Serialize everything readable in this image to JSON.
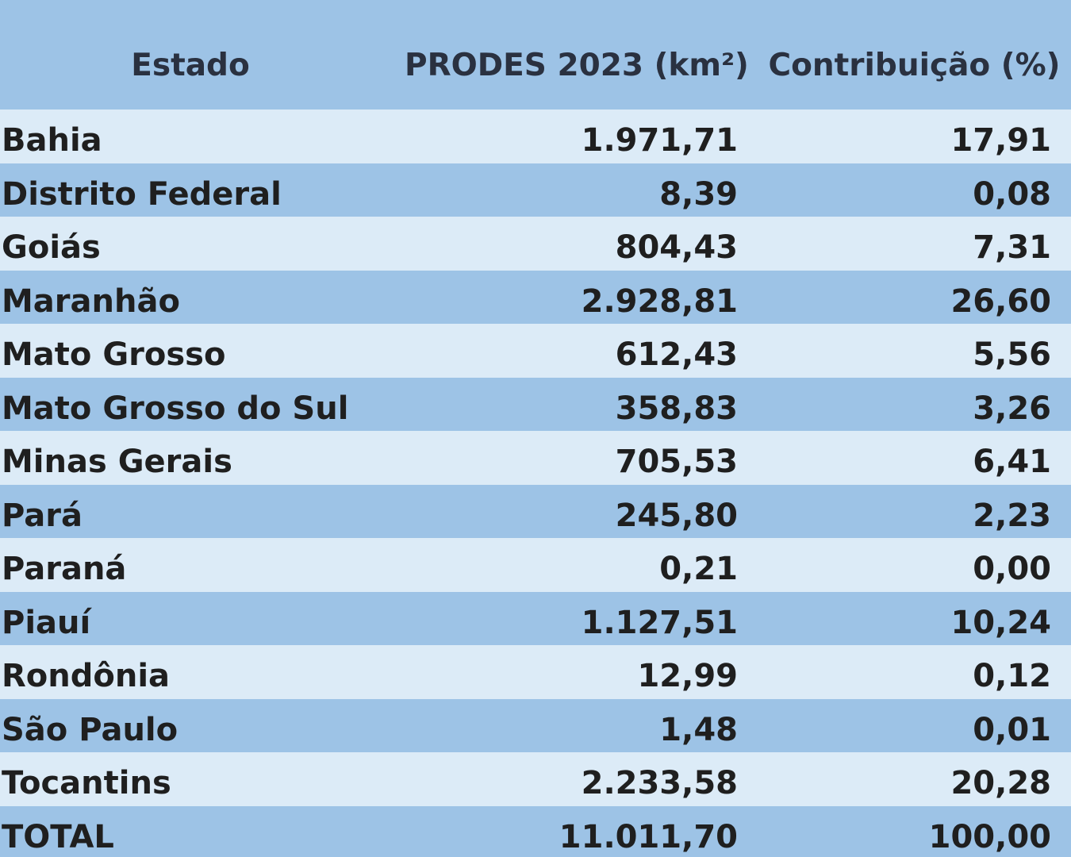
{
  "header": {
    "estado": "Estado",
    "prodes": "PRODES 2023 (km²)",
    "contribuicao": "Contribuição (%)"
  },
  "rows": [
    {
      "estado": "Bahia",
      "prodes": "1.971,71",
      "contribuicao": "17,91"
    },
    {
      "estado": "Distrito Federal",
      "prodes": "8,39",
      "contribuicao": "0,08"
    },
    {
      "estado": "Goiás",
      "prodes": "804,43",
      "contribuicao": "7,31"
    },
    {
      "estado": "Maranhão",
      "prodes": "2.928,81",
      "contribuicao": "26,60"
    },
    {
      "estado": "Mato Grosso",
      "prodes": "612,43",
      "contribuicao": "5,56"
    },
    {
      "estado": "Mato Grosso do Sul",
      "prodes": "358,83",
      "contribuicao": "3,26"
    },
    {
      "estado": "Minas Gerais",
      "prodes": "705,53",
      "contribuicao": "6,41"
    },
    {
      "estado": "Pará",
      "prodes": "245,80",
      "contribuicao": "2,23"
    },
    {
      "estado": "Paraná",
      "prodes": "0,21",
      "contribuicao": "0,00"
    },
    {
      "estado": "Piauí",
      "prodes": "1.127,51",
      "contribuicao": "10,24"
    },
    {
      "estado": "Rondônia",
      "prodes": "12,99",
      "contribuicao": "0,12"
    },
    {
      "estado": "São Paulo",
      "prodes": "1,48",
      "contribuicao": "0,01"
    },
    {
      "estado": "Tocantins",
      "prodes": "2.233,58",
      "contribuicao": "20,28"
    },
    {
      "estado": "TOTAL",
      "prodes": "11.011,70",
      "contribuicao": "100,00"
    }
  ],
  "colors": {
    "header_bg": "#9dc3e6",
    "row_light": "#dcebf7",
    "row_dark": "#9dc3e6",
    "text": "#1f1f1f"
  }
}
